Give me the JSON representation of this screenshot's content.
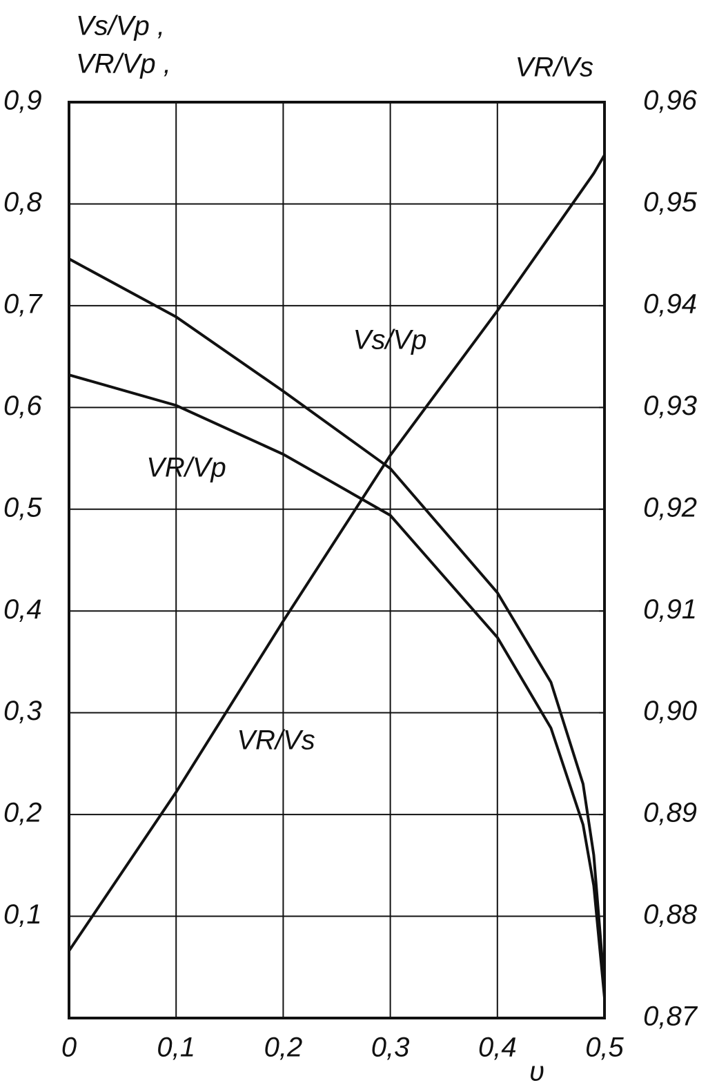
{
  "chart_data": {
    "type": "line",
    "y_label_lines": [
      "Vs/Vp ,",
      "VR/Vp ,"
    ],
    "y2_label": "VR/Vs",
    "x_label": "υ",
    "x": [
      0,
      0.1,
      0.2,
      0.3,
      0.4,
      0.45,
      0.48,
      0.49,
      0.5
    ],
    "series": [
      {
        "name": "Vs/Vp",
        "color": "#111111",
        "values": [
          0.746,
          0.689,
          0.616,
          0.54,
          0.418,
          0.33,
          0.23,
          0.16,
          0.03
        ]
      },
      {
        "name": "VR/Vp",
        "color": "#111111",
        "values": [
          0.632,
          0.602,
          0.554,
          0.494,
          0.374,
          0.285,
          0.19,
          0.13,
          0.02
        ]
      },
      {
        "name": "VR/Vs",
        "color": "#111111",
        "axis": "y2",
        "values": [
          0.8766,
          0.8922,
          0.909,
          0.9253,
          0.9395,
          0.947,
          0.9515,
          0.953,
          0.9548
        ]
      }
    ],
    "xlim": [
      0,
      0.5
    ],
    "xticks": [
      0,
      {
        "value": 0.1,
        "label": "0,1"
      },
      {
        "value": 0.2,
        "label": "0,2"
      },
      {
        "value": 0.3,
        "label": "0,3"
      },
      {
        "value": 0.4,
        "label": "0,4"
      },
      {
        "value": 0.5,
        "label": "0,5"
      }
    ],
    "ylim": [
      0,
      0.9
    ],
    "yticks": [
      {
        "value": 0.1,
        "label": "0,1"
      },
      {
        "value": 0.2,
        "label": "0,2"
      },
      {
        "value": 0.3,
        "label": "0,3"
      },
      {
        "value": 0.4,
        "label": "0,4"
      },
      {
        "value": 0.5,
        "label": "0,5"
      },
      {
        "value": 0.6,
        "label": "0,6"
      },
      {
        "value": 0.7,
        "label": "0,7"
      },
      {
        "value": 0.8,
        "label": "0,8"
      },
      {
        "value": 0.9,
        "label": "0,9"
      }
    ],
    "y2lim": [
      0.87,
      0.96
    ],
    "y2ticks": [
      {
        "value": 0.87,
        "label": "0,87"
      },
      {
        "value": 0.88,
        "label": "0,88"
      },
      {
        "value": 0.89,
        "label": "0,89"
      },
      {
        "value": 0.9,
        "label": "0,90"
      },
      {
        "value": 0.91,
        "label": "0,91"
      },
      {
        "value": 0.92,
        "label": "0,92"
      },
      {
        "value": 0.93,
        "label": "0,93"
      },
      {
        "value": 0.94,
        "label": "0,94"
      },
      {
        "value": 0.95,
        "label": "0,95"
      },
      {
        "value": 0.96,
        "label": "0,96"
      }
    ],
    "grid": true
  }
}
